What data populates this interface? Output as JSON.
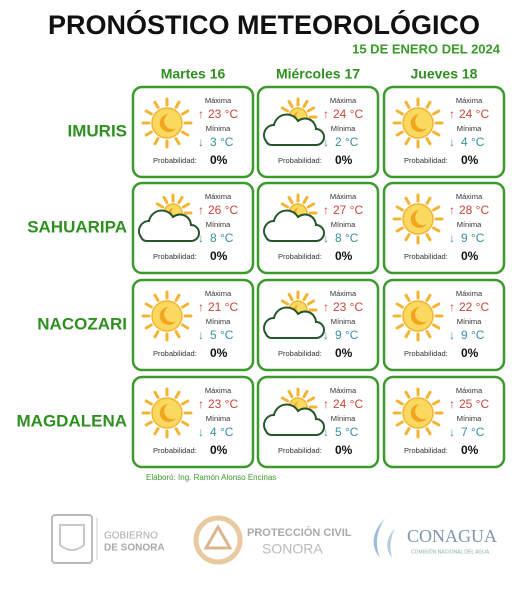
{
  "header": {
    "title": "PRONÓSTICO METEOROLÓGICO",
    "date": "15 DE ENERO DEL 2024"
  },
  "days": [
    "Martes 16",
    "Miércoles 17",
    "Jueves 18"
  ],
  "labels": {
    "max": "Máxima",
    "min": "Mínima",
    "prob": "Probabilidad:"
  },
  "rows": [
    {
      "city": "IMURIS",
      "cells": [
        {
          "icon": "sun",
          "max": "23 °C",
          "min": "3 °C",
          "prob": "0%"
        },
        {
          "icon": "sun-cloud",
          "max": "24 °C",
          "min": "2 °C",
          "prob": "0%"
        },
        {
          "icon": "sun",
          "max": "24 °C",
          "min": "4 °C",
          "prob": "0%"
        }
      ]
    },
    {
      "city": "SAHUARIPA",
      "cells": [
        {
          "icon": "sun-cloud",
          "max": "26 °C",
          "min": "8 °C",
          "prob": "0%"
        },
        {
          "icon": "sun-cloud",
          "max": "27 °C",
          "min": "8 °C",
          "prob": "0%"
        },
        {
          "icon": "sun",
          "max": "28 °C",
          "min": "9 °C",
          "prob": "0%"
        }
      ]
    },
    {
      "city": "NACOZARI",
      "cells": [
        {
          "icon": "sun",
          "max": "21 °C",
          "min": "5 °C",
          "prob": "0%"
        },
        {
          "icon": "sun-cloud",
          "max": "23 °C",
          "min": "9 °C",
          "prob": "0%"
        },
        {
          "icon": "sun",
          "max": "22 °C",
          "min": "9 °C",
          "prob": "0%"
        }
      ]
    },
    {
      "city": "MAGDALENA",
      "cells": [
        {
          "icon": "sun",
          "max": "23 °C",
          "min": "4 °C",
          "prob": "0%"
        },
        {
          "icon": "sun-cloud",
          "max": "24 °C",
          "min": "5 °C",
          "prob": "0%"
        },
        {
          "icon": "sun",
          "max": "25 °C",
          "min": "7 °C",
          "prob": "0%"
        }
      ]
    }
  ],
  "credit": "Elaboró: Ing. Ramón Alonso Encinas",
  "logos": {
    "gobierno": [
      "GOBIERNO",
      "DE SONORA"
    ],
    "proteccion": [
      "PROTECCIÓN CIVIL",
      "SONORA"
    ],
    "conagua": [
      "CONAGUA",
      "COMISIÓN NACIONAL DEL AGUA"
    ]
  }
}
